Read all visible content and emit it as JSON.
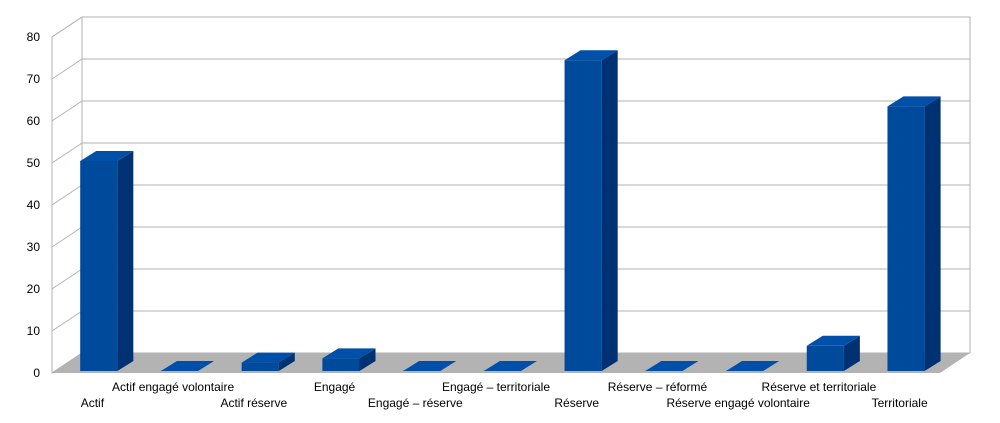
{
  "chart_data": {
    "type": "bar",
    "style": "3d-column",
    "title": "",
    "xlabel": "",
    "ylabel": "",
    "ylim": [
      0,
      80
    ],
    "ytick_step": 10,
    "yticks": [
      "0",
      "10",
      "20",
      "30",
      "40",
      "50",
      "60",
      "70",
      "80"
    ],
    "grid": true,
    "legend": "none",
    "categories": [
      "Actif",
      "Actif engagé volontaire",
      "Actif réserve",
      "Engagé",
      "Engagé – réserve",
      "Engagé – territoriale",
      "Réserve",
      "Réserve – réformé",
      "Réserve engagé volontaire",
      "Réserve et territoriale",
      "Territoriale"
    ],
    "values": [
      50,
      0,
      2,
      3,
      0,
      0,
      74,
      0,
      0,
      6,
      63
    ],
    "colors": {
      "bar_front": "#004a9c",
      "bar_side": "#003273",
      "bar_top": "#004fa8",
      "floor": "#b3b3b3",
      "grid": "#b3b3b3",
      "wall": "#ffffff"
    }
  }
}
